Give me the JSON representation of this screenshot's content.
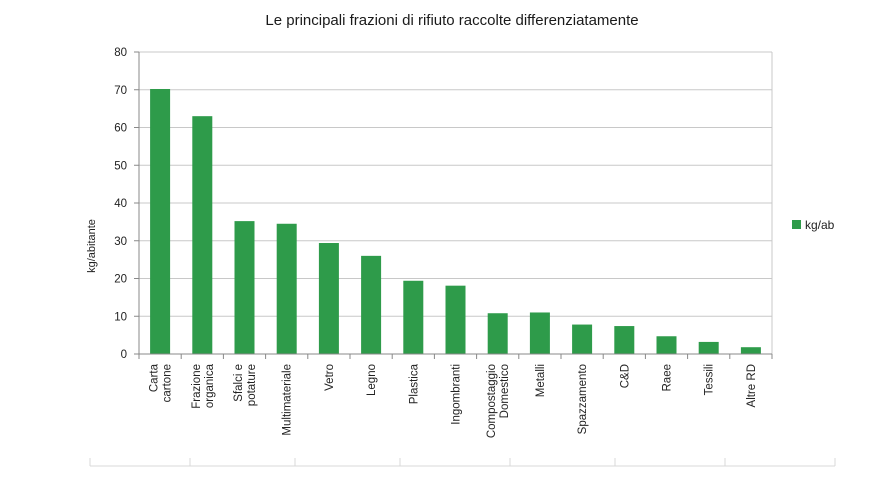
{
  "chart_data": {
    "type": "bar",
    "title": "Le principali frazioni di rifiuto raccolte differenziatamente",
    "xlabel": "",
    "ylabel": "kg/abitante",
    "ylim": [
      0,
      80
    ],
    "yticks": [
      0,
      10,
      20,
      30,
      40,
      50,
      60,
      70,
      80
    ],
    "grid": true,
    "legend_position": "right",
    "categories": [
      [
        "Carta",
        "cartone"
      ],
      [
        "Frazione",
        "organica"
      ],
      [
        "Sfalci e",
        "potature"
      ],
      [
        "Multimateriale"
      ],
      [
        "Vetro"
      ],
      [
        "Legno"
      ],
      [
        "Plastica"
      ],
      [
        "Ingombranti"
      ],
      [
        "Compostaggio",
        "Domestico"
      ],
      [
        "Metalli"
      ],
      [
        "Spazzamento"
      ],
      [
        "C&D"
      ],
      [
        "Raee"
      ],
      [
        "Tessili"
      ],
      [
        "Altre RD"
      ]
    ],
    "series": [
      {
        "name": "kg/ab",
        "color": "#2e9b4a",
        "values": [
          70.2,
          63.0,
          35.2,
          34.5,
          29.4,
          26.0,
          19.4,
          18.1,
          10.8,
          11.0,
          7.8,
          7.4,
          4.7,
          3.2,
          1.8
        ]
      }
    ]
  }
}
